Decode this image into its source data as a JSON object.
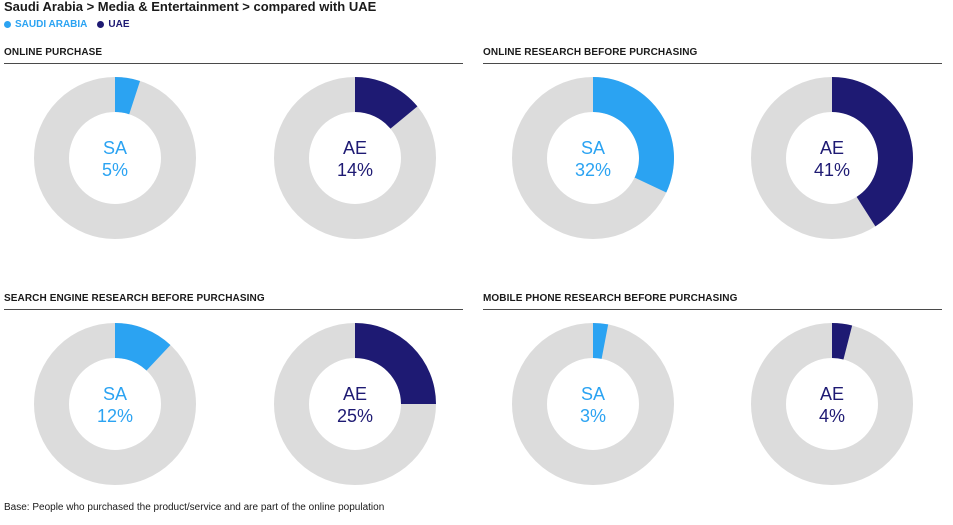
{
  "header": {
    "title": "Saudi Arabia > Media & Entertainment > compared with UAE",
    "legend": [
      {
        "label": "SAUDI ARABIA",
        "color": "#2ba3f2"
      },
      {
        "label": "UAE",
        "color": "#1e1a73"
      }
    ]
  },
  "colors": {
    "sa": "#2ba3f2",
    "ae": "#1e1a73",
    "track": "#dcdcdc"
  },
  "chart_data": [
    {
      "type": "pie",
      "title": "ONLINE PURCHASE",
      "series": [
        {
          "name": "SA",
          "label": "5%",
          "value": 5
        },
        {
          "name": "AE",
          "label": "14%",
          "value": 14
        }
      ]
    },
    {
      "type": "pie",
      "title": "ONLINE RESEARCH BEFORE PURCHASING",
      "series": [
        {
          "name": "SA",
          "label": "32%",
          "value": 32
        },
        {
          "name": "AE",
          "label": "41%",
          "value": 41
        }
      ]
    },
    {
      "type": "pie",
      "title": "SEARCH ENGINE RESEARCH BEFORE PURCHASING",
      "series": [
        {
          "name": "SA",
          "label": "12%",
          "value": 12
        },
        {
          "name": "AE",
          "label": "25%",
          "value": 25
        }
      ]
    },
    {
      "type": "pie",
      "title": "MOBILE PHONE RESEARCH BEFORE PURCHASING",
      "series": [
        {
          "name": "SA",
          "label": "3%",
          "value": 3
        },
        {
          "name": "AE",
          "label": "4%",
          "value": 4
        }
      ]
    }
  ],
  "footnote": "Base: People who purchased the product/service and are part of the online population"
}
